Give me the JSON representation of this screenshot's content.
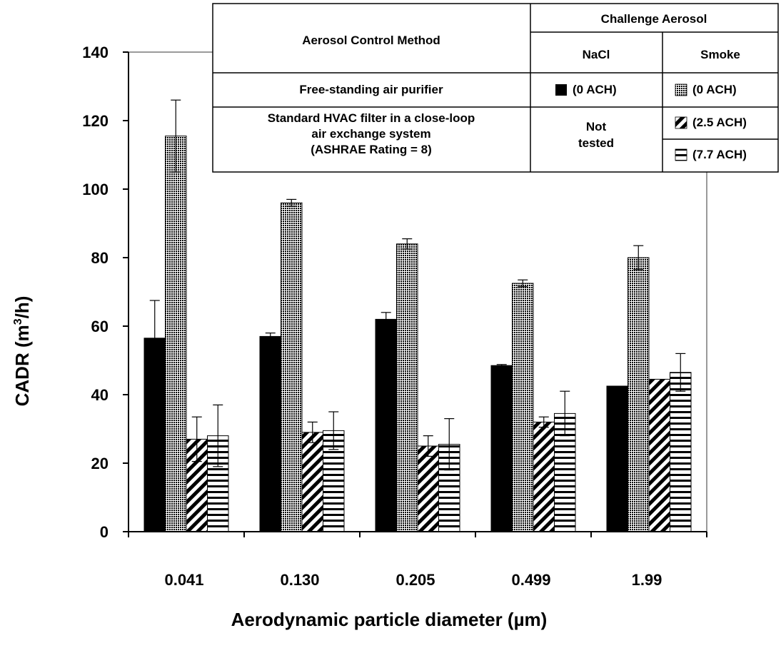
{
  "chart_data": {
    "type": "bar",
    "xlabel": "Aerodynamic particle diameter (µm)",
    "ylabel_main": "CADR (m",
    "ylabel_sup": "3",
    "ylabel_tail": "/h)",
    "ylim": [
      0,
      140
    ],
    "yticks": [
      "0",
      "20",
      "40",
      "60",
      "80",
      "100",
      "120",
      "140"
    ],
    "categories": [
      "0.041",
      "0.130",
      "0.205",
      "0.499",
      "1.99"
    ],
    "grid": false,
    "legend_position": "top-right",
    "series": [
      {
        "label": "(0 ACH)",
        "pattern": "solid",
        "values": [
          56.5,
          57,
          62,
          48.5,
          42.5
        ],
        "errors": [
          11,
          1,
          2,
          0.3,
          0
        ]
      },
      {
        "label": "(0 ACH)",
        "pattern": "dots",
        "values": [
          115.5,
          96,
          84,
          72.5,
          80
        ],
        "errors": [
          10.5,
          1,
          1.5,
          1,
          3.5
        ]
      },
      {
        "label": "(2.5 ACH)",
        "pattern": "diagonal",
        "values": [
          27,
          29,
          25,
          32,
          44.5
        ],
        "errors": [
          6.5,
          3,
          3,
          1.5,
          0
        ]
      },
      {
        "label": "(7.7 ACH)",
        "pattern": "horizontal",
        "values": [
          28,
          29.5,
          25.5,
          34.5,
          46.5
        ],
        "errors": [
          9,
          5.5,
          7.5,
          6.5,
          5.5
        ]
      }
    ],
    "legend_table": {
      "col1_header": "Aerosol Control Method",
      "group_header": "Challenge Aerosol",
      "sub_header_1": "NaCl",
      "sub_header_2": "Smoke",
      "row1_method": "Free-standing air purifier",
      "row2_method_line1": "Standard HVAC filter in a close-loop",
      "row2_method_line2": "air exchange system",
      "row2_method_line3": "(ASHRAE Rating = 8)",
      "not_tested_line1": "Not",
      "not_tested_line2": "tested"
    }
  }
}
